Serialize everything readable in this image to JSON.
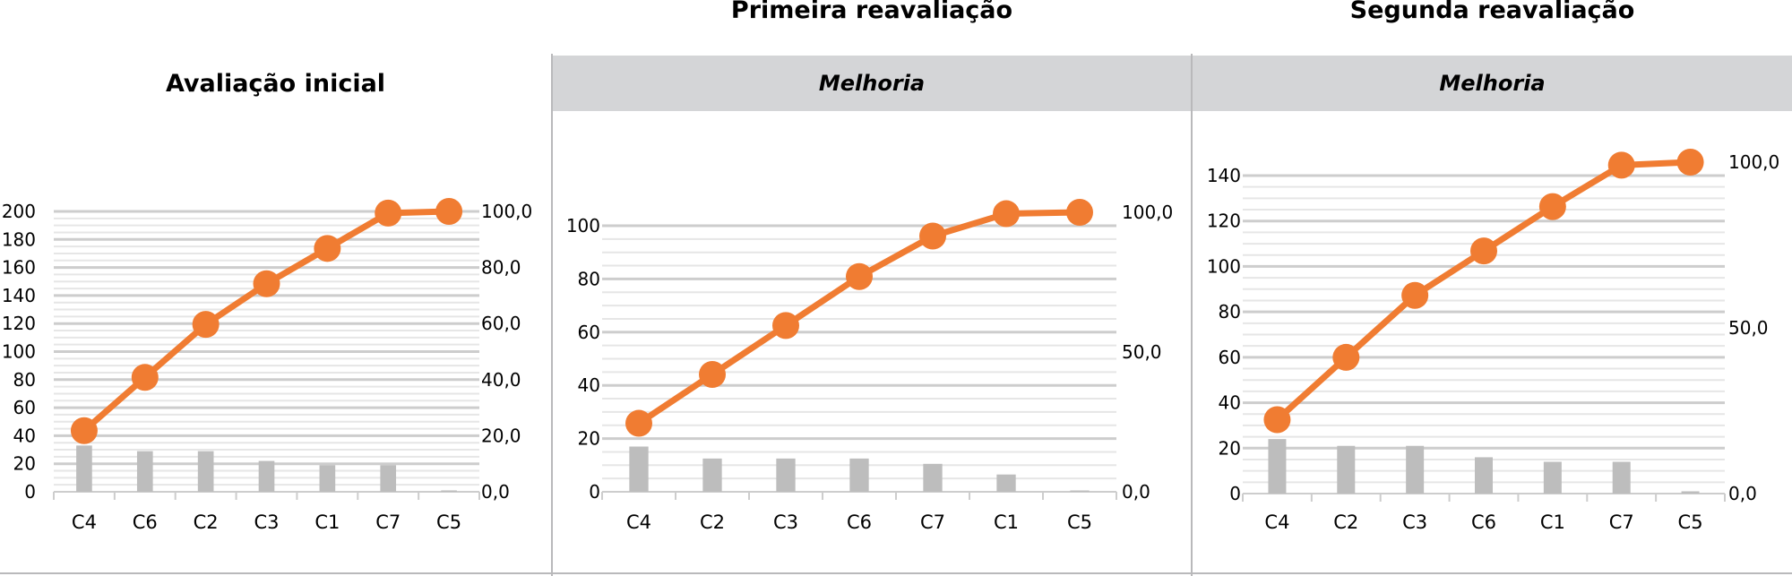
{
  "colors": {
    "line": "#f07c32",
    "bar": "#bdbdbd",
    "grid_major": "#cdcdcd",
    "grid_minor": "#e6e6e6",
    "band": "#d4d5d7",
    "text": "#000000"
  },
  "headers": {
    "panel1_title": "Avaliação inicial",
    "panel2_title": "Primeira reavaliação",
    "panel3_title": "Segunda reavaliação",
    "panel2_band": "Melhoria",
    "panel3_band": "Melhoria"
  },
  "chart_data": [
    {
      "type": "bar",
      "title": "Avaliação inicial",
      "categories": [
        "C4",
        "C6",
        "C2",
        "C3",
        "C1",
        "C7",
        "C5"
      ],
      "left_axis": {
        "min": 0,
        "max": 200,
        "ticks": [
          "0",
          "20",
          "40",
          "60",
          "80",
          "100",
          "120",
          "140",
          "160",
          "180",
          "200"
        ]
      },
      "right_axis": {
        "min": 0,
        "max": 100,
        "ticks": [
          "0,0",
          "20,0",
          "40,0",
          "60,0",
          "80,0",
          "100,0"
        ]
      },
      "series": [
        {
          "type": "bar",
          "axis": "left",
          "values": [
            33,
            29,
            29,
            22,
            19,
            19,
            1
          ]
        },
        {
          "type": "line",
          "axis": "right",
          "values": [
            21.8,
            40.8,
            59.7,
            74.2,
            86.8,
            99.4,
            100
          ]
        }
      ],
      "grid": true
    },
    {
      "type": "bar",
      "title": "Primeira reavaliação",
      "subtitle": "Melhoria",
      "categories": [
        "C4",
        "C2",
        "C3",
        "C6",
        "C7",
        "C1",
        "C5"
      ],
      "left_axis": {
        "min": 0,
        "max": 100,
        "ticks": [
          "0",
          "20",
          "40",
          "60",
          "80",
          "100"
        ]
      },
      "right_axis": {
        "min": 0,
        "max": 100,
        "ticks": [
          "0,0",
          "50,0",
          "100,0"
        ]
      },
      "series": [
        {
          "type": "bar",
          "axis": "left",
          "values": [
            17,
            12.5,
            12.5,
            12.5,
            10.5,
            6.5,
            0.5
          ]
        },
        {
          "type": "line",
          "axis": "right",
          "values": [
            24.5,
            42,
            59.5,
            77,
            91.5,
            99.5,
            100
          ]
        }
      ],
      "grid": true
    },
    {
      "type": "bar",
      "title": "Segunda reavaliação",
      "subtitle": "Melhoria",
      "categories": [
        "C4",
        "C2",
        "C3",
        "C6",
        "C1",
        "C7",
        "C5"
      ],
      "left_axis": {
        "min": 0,
        "max": 140,
        "ticks": [
          "0",
          "20",
          "40",
          "60",
          "80",
          "100",
          "120",
          "140"
        ]
      },
      "right_axis": {
        "min": 0,
        "max": 100,
        "ticks": [
          "0,0",
          "50,0",
          "100,0"
        ]
      },
      "series": [
        {
          "type": "bar",
          "axis": "left",
          "values": [
            24,
            21,
            21,
            16,
            14,
            14,
            1
          ]
        },
        {
          "type": "line",
          "axis": "right",
          "values": [
            22.3,
            41.1,
            59.8,
            73.2,
            86.6,
            99.1,
            100
          ]
        }
      ],
      "grid": true
    }
  ]
}
